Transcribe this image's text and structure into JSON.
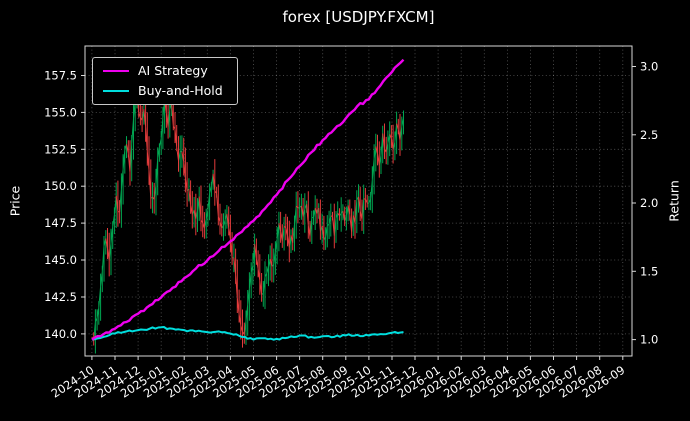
{
  "chart_data": {
    "type": "line",
    "title": "forex [USDJPY.FXCM]",
    "grid": true,
    "colors": {
      "background": "#000000",
      "text": "#ffffff",
      "grid": "#5a5a5a",
      "spine": "#d9d9d9",
      "price_up": "#00a651",
      "price_down": "#e23b3b",
      "ai_strategy": "#ee00ee",
      "buy_and_hold": "#00dede"
    },
    "left_axis": {
      "label": "Price",
      "range": [
        138.5,
        159.5
      ],
      "ticks": [
        140.0,
        142.5,
        145.0,
        147.5,
        150.0,
        152.5,
        155.0,
        157.5
      ],
      "tick_labels": [
        "140.0",
        "142.5",
        "145.0",
        "147.5",
        "150.0",
        "152.5",
        "155.0",
        "157.5"
      ]
    },
    "right_axis": {
      "label": "Return",
      "range": [
        0.88,
        3.15
      ],
      "ticks": [
        1.0,
        1.5,
        2.0,
        2.5,
        3.0
      ],
      "tick_labels": [
        "1.0",
        "1.5",
        "2.0",
        "2.5",
        "3.0"
      ]
    },
    "x_axis": {
      "range": [
        -0.3,
        23.4
      ],
      "tick_labels": [
        "2024-10",
        "2024-11",
        "2024-12",
        "2025-01",
        "2025-02",
        "2025-03",
        "2025-04",
        "2025-05",
        "2025-06",
        "2025-07",
        "2025-08",
        "2025-09",
        "2025-10",
        "2025-11",
        "2025-12",
        "2026-01",
        "2026-02",
        "2026-03",
        "2026-04",
        "2026-05",
        "2026-06",
        "2026-07",
        "2026-08",
        "2026-09"
      ]
    },
    "legend": [
      {
        "label": "AI Strategy",
        "color": "#ee00ee"
      },
      {
        "label": "Buy-and-Hold",
        "color": "#00dede"
      }
    ],
    "series": [
      {
        "name": "Price",
        "axis": "left",
        "style": "updown-bars",
        "x": [
          0,
          0.15,
          0.3,
          0.45,
          0.6,
          0.75,
          0.9,
          1.05,
          1.2,
          1.35,
          1.5,
          1.65,
          1.8,
          1.95,
          2.1,
          2.25,
          2.4,
          2.55,
          2.7,
          2.85,
          3.0,
          3.15,
          3.3,
          3.45,
          3.6,
          3.75,
          3.9,
          4.05,
          4.2,
          4.35,
          4.5,
          4.65,
          4.8,
          4.95,
          5.1,
          5.25,
          5.4,
          5.55,
          5.7,
          5.85,
          6.0,
          6.15,
          6.3,
          6.45,
          6.6,
          6.75,
          6.9,
          7.05,
          7.2,
          7.35,
          7.5,
          7.65,
          7.8,
          7.95,
          8.1,
          8.25,
          8.4,
          8.55,
          8.7,
          8.85,
          9.0,
          9.15,
          9.3,
          9.45,
          9.6,
          9.75,
          9.9,
          10.05,
          10.2,
          10.35,
          10.5,
          10.65,
          10.8,
          10.95,
          11.1,
          11.25,
          11.4,
          11.55,
          11.7,
          11.85,
          12.0,
          12.15,
          12.3,
          12.45,
          12.6,
          12.75,
          12.9,
          13.05,
          13.2,
          13.35,
          13.5
        ],
        "values": [
          139.8,
          140.3,
          141.8,
          144.5,
          146.8,
          145.2,
          147.6,
          149.3,
          148.2,
          151.0,
          153.2,
          151.4,
          154.6,
          156.6,
          154.2,
          155.4,
          152.3,
          149.6,
          148.6,
          151.4,
          153.2,
          155.6,
          154.1,
          155.8,
          153.4,
          151.6,
          152.6,
          150.4,
          149.8,
          148.4,
          147.6,
          148.8,
          147.2,
          147.8,
          149.6,
          151.2,
          149.0,
          147.6,
          147.0,
          147.8,
          146.4,
          144.8,
          142.6,
          140.6,
          139.9,
          142.2,
          143.8,
          145.6,
          144.2,
          142.8,
          143.6,
          145.0,
          144.2,
          145.8,
          147.2,
          146.2,
          147.6,
          145.8,
          146.6,
          148.2,
          148.8,
          147.6,
          148.4,
          147.0,
          147.8,
          148.6,
          147.4,
          146.6,
          147.4,
          148.2,
          147.0,
          147.8,
          148.6,
          147.6,
          148.4,
          147.2,
          148.0,
          149.2,
          148.2,
          149.6,
          148.4,
          150.6,
          152.4,
          151.2,
          153.4,
          152.2,
          153.8,
          152.6,
          154.2,
          153.2,
          154.4
        ]
      },
      {
        "name": "AI Strategy",
        "axis": "right",
        "color": "#ee00ee",
        "x": [
          0,
          0.5,
          1,
          1.5,
          2,
          2.5,
          3,
          3.5,
          4,
          4.5,
          5,
          5.5,
          6,
          6.5,
          7,
          7.5,
          8,
          8.5,
          9,
          9.5,
          10,
          10.5,
          11,
          11.5,
          12,
          12.5,
          13,
          13.5
        ],
        "values": [
          1.0,
          1.04,
          1.08,
          1.13,
          1.19,
          1.25,
          1.31,
          1.38,
          1.45,
          1.52,
          1.58,
          1.65,
          1.72,
          1.79,
          1.87,
          1.96,
          2.06,
          2.17,
          2.27,
          2.37,
          2.46,
          2.54,
          2.62,
          2.71,
          2.76,
          2.86,
          2.96,
          3.05
        ]
      },
      {
        "name": "Buy-and-Hold",
        "axis": "right",
        "color": "#00dede",
        "x": [
          0,
          0.5,
          1,
          1.5,
          2,
          2.5,
          3,
          3.5,
          4,
          4.5,
          5,
          5.5,
          6,
          6.5,
          7,
          7.5,
          8,
          8.5,
          9,
          9.5,
          10,
          10.5,
          11,
          11.5,
          12,
          12.5,
          13,
          13.5
        ],
        "values": [
          1.0,
          1.02,
          1.045,
          1.06,
          1.07,
          1.08,
          1.09,
          1.08,
          1.07,
          1.06,
          1.055,
          1.06,
          1.045,
          1.02,
          1.0,
          1.01,
          1.005,
          1.015,
          1.03,
          1.02,
          1.025,
          1.02,
          1.03,
          1.035,
          1.03,
          1.04,
          1.05,
          1.055
        ]
      }
    ]
  }
}
